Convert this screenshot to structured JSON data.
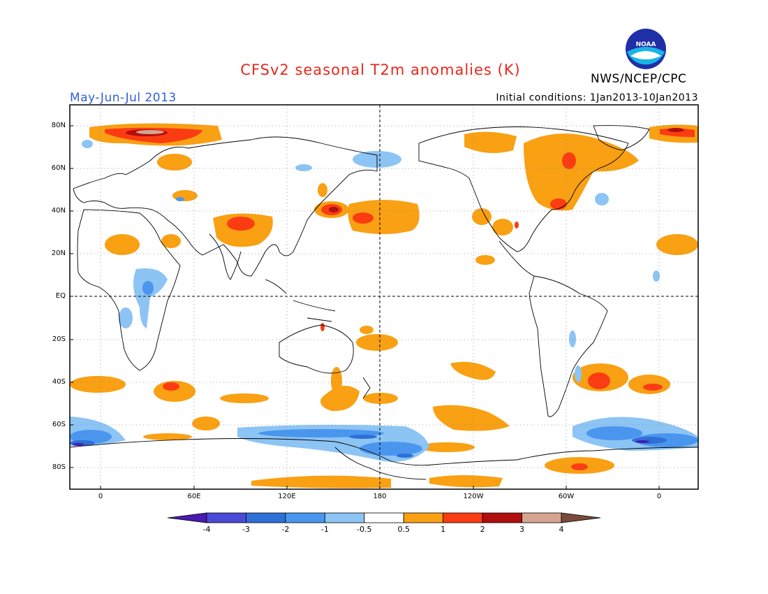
{
  "header": {
    "title": "CFSv2 seasonal T2m anomalies (K)",
    "agency": "NWS/NCEP/CPC",
    "season": "May-Jun-Jul 2013",
    "initial_conditions": "Initial conditions: 1Jan2013-10Jan2013",
    "logo_text": "NOAA"
  },
  "map": {
    "lat_labels": [
      "80N",
      "60N",
      "40N",
      "20N",
      "EQ",
      "20S",
      "40S",
      "60S",
      "80S"
    ],
    "lon_labels": [
      "0",
      "60E",
      "120E",
      "180",
      "120W",
      "60W",
      "0"
    ]
  },
  "colorbar": {
    "labels": [
      "-4",
      "-3",
      "-2",
      "-1",
      "-0.5",
      "0.5",
      "1",
      "2",
      "3",
      "4"
    ],
    "colors": [
      "#4a1ab0",
      "#4a4ad6",
      "#2f6fd8",
      "#4a96ee",
      "#8cc4f4",
      "#ffffff",
      "#f9a013",
      "#fb3c12",
      "#b10e0e",
      "#d5a592",
      "#7a4a3a"
    ]
  }
}
